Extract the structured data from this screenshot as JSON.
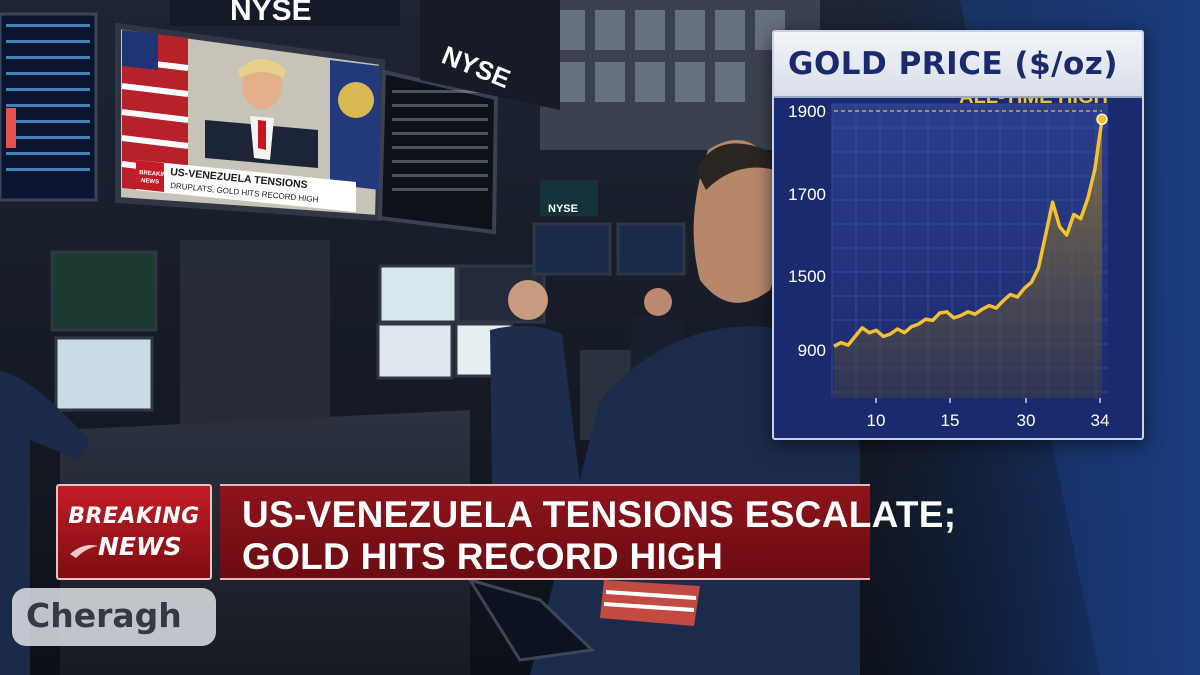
{
  "tv_screen": {
    "badge_top": "BREAKING",
    "badge_bottom": "NEWS",
    "ticker_line1": "US-VENEZUELA TENSIONS",
    "ticker_line2": "DRUPLATS, GOLD HITS RECORD HIGH"
  },
  "signage": {
    "nyse_top": "NYSE",
    "nyse_ceiling": "NYSE",
    "nyse_post": "NYSE"
  },
  "chart_data": {
    "type": "line",
    "title": "GOLD PRICE ($/oz)",
    "annotation": "ALL-TIME HIGH",
    "y_ticks": [
      900,
      1500,
      1700,
      1900
    ],
    "y_tick_labels": [
      "900",
      "1500",
      "1700",
      "1900"
    ],
    "x_ticks": [
      10,
      15,
      30,
      34
    ],
    "x_tick_labels": [
      "10",
      "15",
      "30",
      "34"
    ],
    "line_color": "#f2c230",
    "series": [
      {
        "values": [
          930,
          960,
          940,
          1010,
          1080,
          1040,
          1060,
          1010,
          1030,
          1070,
          1040,
          1090,
          1110,
          1150,
          1140,
          1200,
          1210,
          1160,
          1180,
          1210,
          1190,
          1230,
          1260,
          1240,
          1300,
          1350,
          1330,
          1400,
          1450,
          1520,
          1600,
          1680,
          1620,
          1600,
          1650,
          1640,
          1690,
          1760,
          1880
        ]
      }
    ]
  },
  "breaking_news": {
    "badge_line1": "BREAKING",
    "badge_line2": "NEWS",
    "headline_line1": "US-VENEZUELA TENSIONS ESCALATE;",
    "headline_line2": "GOLD HITS RECORD HIGH"
  },
  "watermark": {
    "text": "Cheragh"
  }
}
